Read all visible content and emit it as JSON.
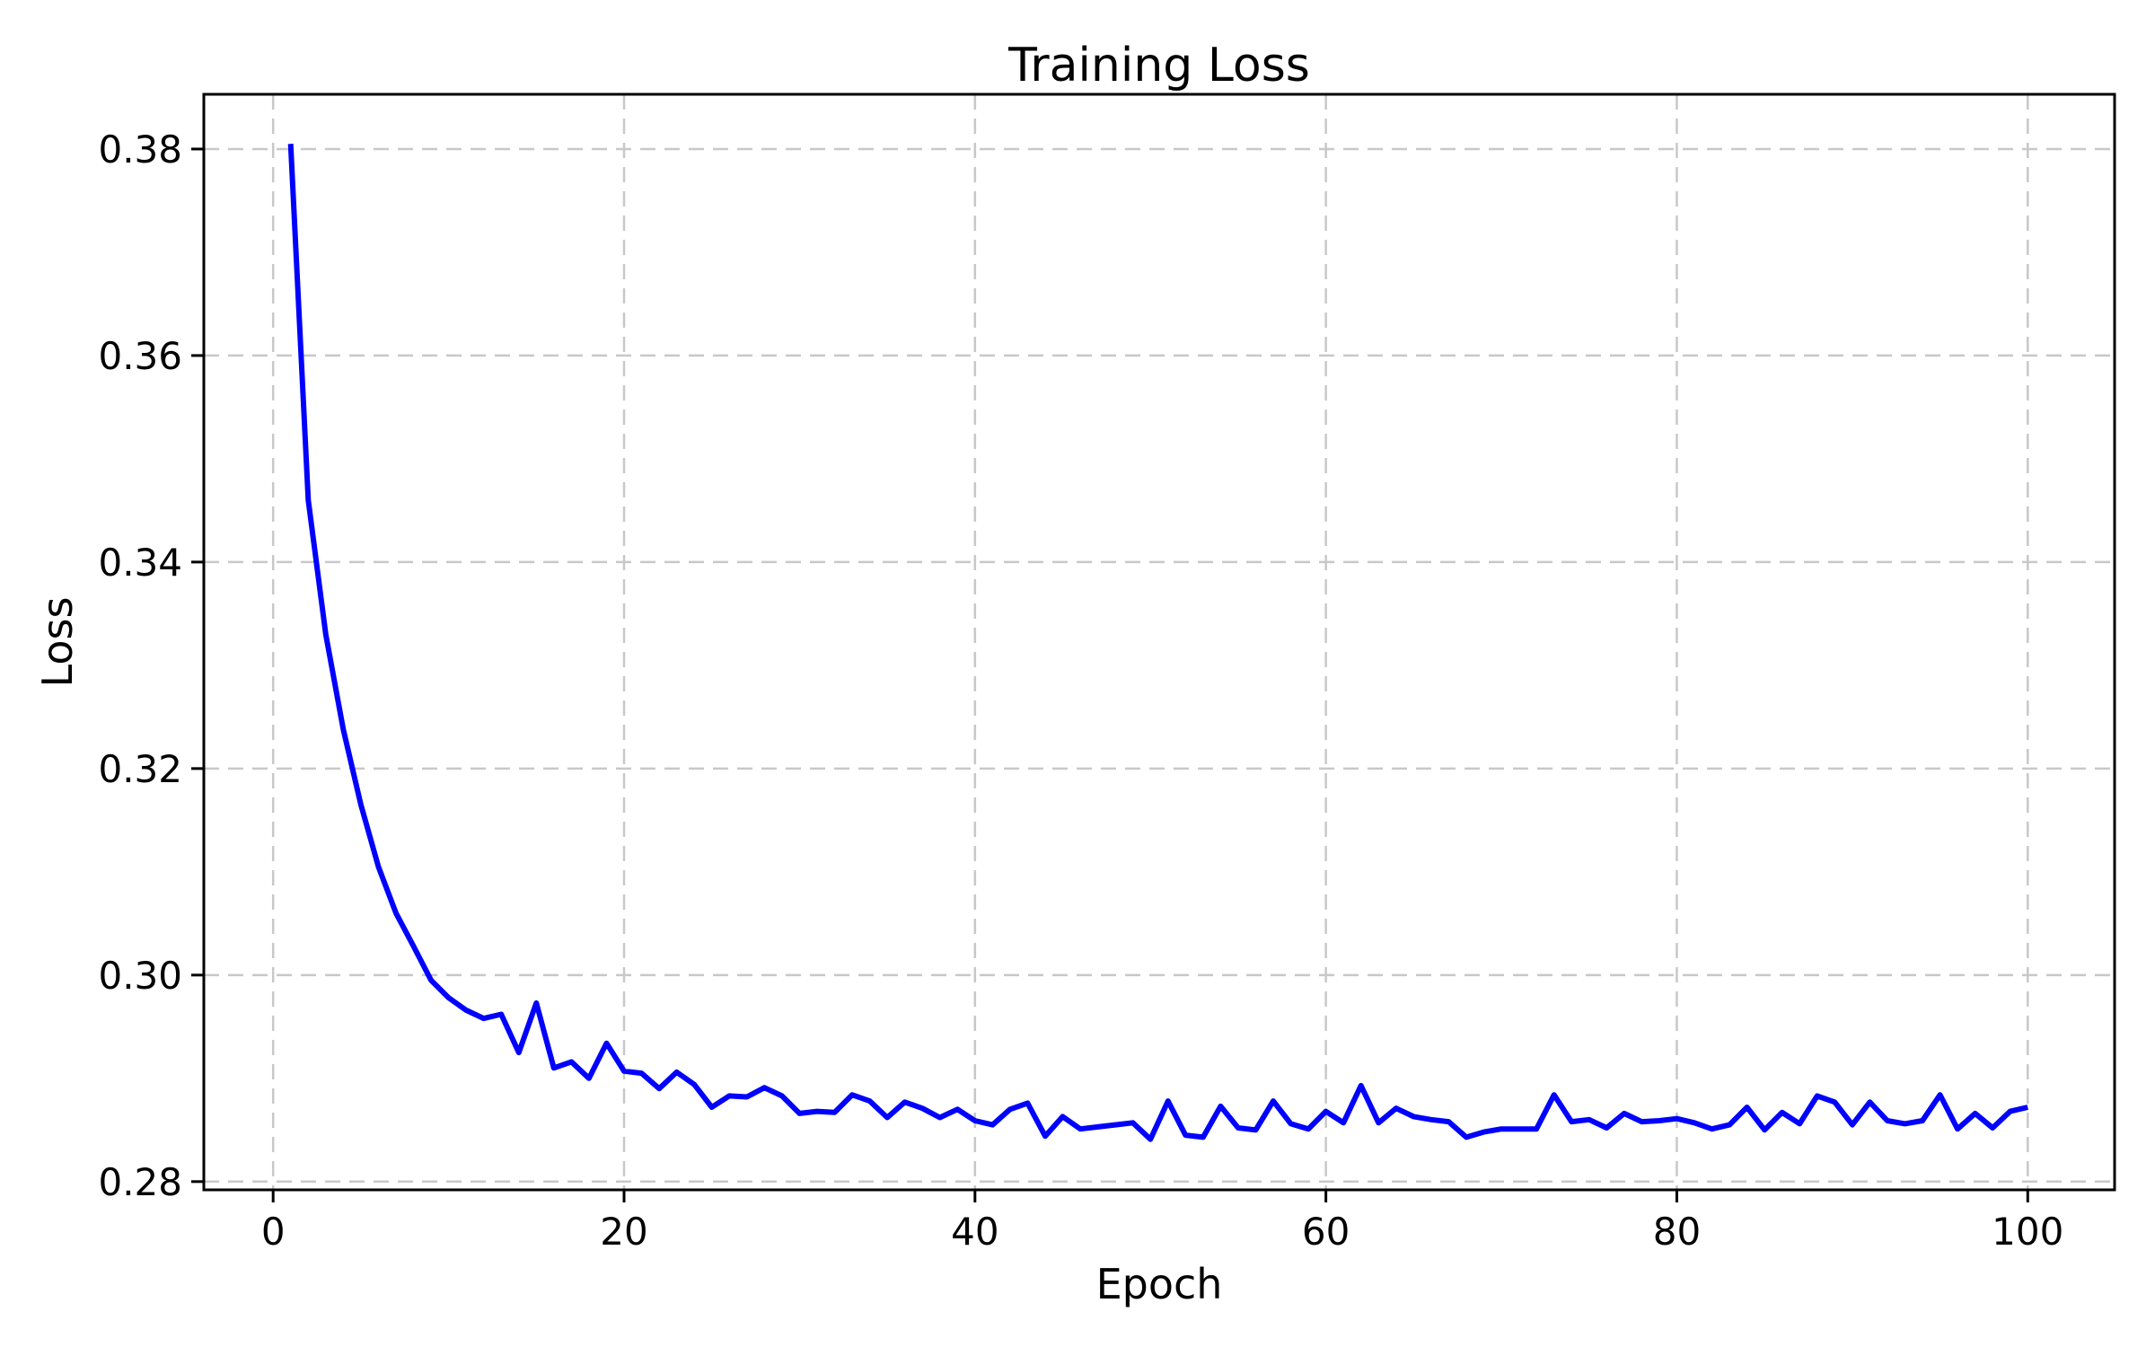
{
  "page": {
    "background": "#ffffff"
  },
  "chart_data": {
    "type": "line",
    "title": "Training Loss",
    "xlabel": "Epoch",
    "ylabel": "Loss",
    "legend": false,
    "grid": true,
    "grid_style": "dashed",
    "grid_color": "#c8c8c8",
    "axis_color": "#000000",
    "background": "#ffffff",
    "xlim": [
      -3.95,
      104.95
    ],
    "ylim": [
      0.2792,
      0.3853
    ],
    "xticks": [
      0,
      20,
      40,
      60,
      80,
      100
    ],
    "yticks": [
      0.28,
      0.3,
      0.32,
      0.34,
      0.36,
      0.38
    ],
    "x": [
      1,
      2,
      3,
      4,
      5,
      6,
      7,
      8,
      9,
      10,
      11,
      12,
      13,
      14,
      15,
      16,
      17,
      18,
      19,
      20,
      21,
      22,
      23,
      24,
      25,
      26,
      27,
      28,
      29,
      30,
      31,
      32,
      33,
      34,
      35,
      36,
      37,
      38,
      39,
      40,
      41,
      42,
      43,
      44,
      45,
      46,
      47,
      48,
      49,
      50,
      51,
      52,
      53,
      54,
      55,
      56,
      57,
      58,
      59,
      60,
      61,
      62,
      63,
      64,
      65,
      66,
      67,
      68,
      69,
      70,
      71,
      72,
      73,
      74,
      75,
      76,
      77,
      78,
      79,
      80,
      81,
      82,
      83,
      84,
      85,
      86,
      87,
      88,
      89,
      90,
      91,
      92,
      93,
      94,
      95,
      96,
      97,
      98,
      99,
      100
    ],
    "series": [
      {
        "name": "training loss",
        "color": "#0000ff",
        "line_width": 6,
        "values": [
          0.3805,
          0.346,
          0.333,
          0.3238,
          0.3165,
          0.3105,
          0.306,
          0.3028,
          0.2995,
          0.2978,
          0.2966,
          0.2958,
          0.2962,
          0.2925,
          0.2973,
          0.291,
          0.2916,
          0.29,
          0.2934,
          0.2907,
          0.2905,
          0.289,
          0.2906,
          0.2894,
          0.2872,
          0.2883,
          0.2882,
          0.2891,
          0.2883,
          0.2866,
          0.2868,
          0.2867,
          0.2884,
          0.2878,
          0.2862,
          0.2877,
          0.2871,
          0.2862,
          0.287,
          0.2859,
          0.2855,
          0.287,
          0.2876,
          0.2844,
          0.2863,
          0.2851,
          0.2853,
          0.2855,
          0.2857,
          0.2841,
          0.2878,
          0.2845,
          0.2843,
          0.2873,
          0.2852,
          0.285,
          0.2878,
          0.2856,
          0.2851,
          0.2868,
          0.2857,
          0.2893,
          0.2857,
          0.2871,
          0.2863,
          0.286,
          0.2858,
          0.2843,
          0.2848,
          0.2851,
          0.2851,
          0.2851,
          0.2884,
          0.2858,
          0.286,
          0.2852,
          0.2866,
          0.2858,
          0.2859,
          0.2861,
          0.2857,
          0.2851,
          0.2855,
          0.2872,
          0.285,
          0.2867,
          0.2856,
          0.2883,
          0.2877,
          0.2855,
          0.2877,
          0.2859,
          0.2856,
          0.2859,
          0.2884,
          0.2851,
          0.2866,
          0.2852,
          0.2868,
          0.2872
        ]
      }
    ]
  }
}
